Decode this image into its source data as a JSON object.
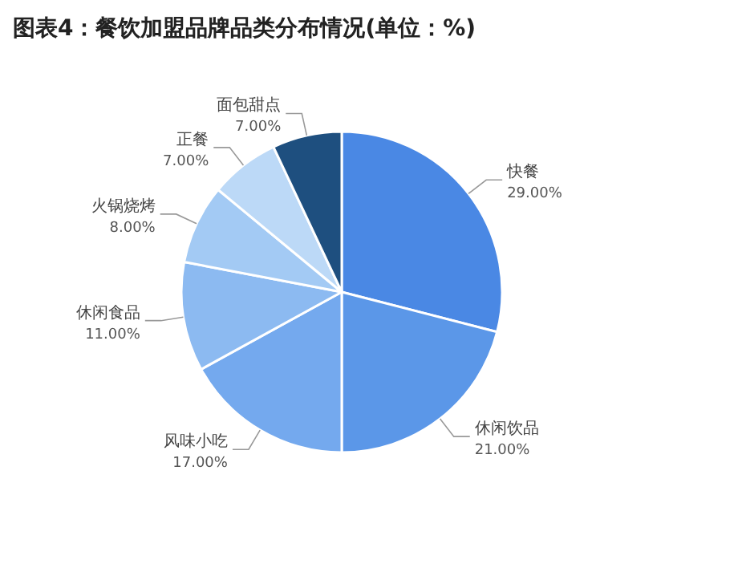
{
  "chart_data": {
    "type": "pie",
    "title": "图表4：餐饮加盟品牌品类分布情况(单位：%)",
    "categories": [
      "快餐",
      "休闲饮品",
      "风味小吃",
      "休闲食品",
      "火锅烧烤",
      "正餐",
      "面包甜点"
    ],
    "values": [
      29,
      21,
      17,
      11,
      8,
      7,
      7
    ],
    "value_labels": [
      "29.00%",
      "21.00%",
      "17.00%",
      "11.00%",
      "8.00%",
      "7.00%",
      "7.00%"
    ],
    "colors": [
      "#4a88e4",
      "#5b97e8",
      "#74a9ee",
      "#8cbaf1",
      "#a3caf4",
      "#bcd9f7",
      "#1e4f7f"
    ]
  }
}
